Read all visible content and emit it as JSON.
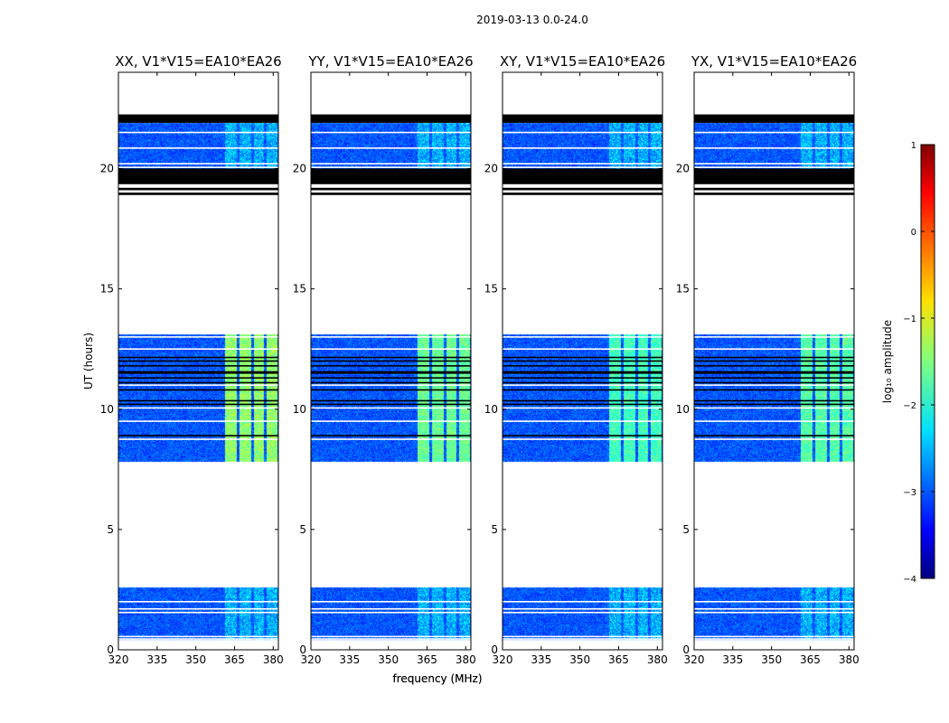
{
  "figure": {
    "suptitle": "2019-03-13 0.0-24.0"
  },
  "chart_data": [
    {
      "type": "heatmap",
      "title": "XX, V1*V15=EA10*EA26",
      "xlabel": "frequency (MHz)",
      "ylabel": "UT (hours)",
      "xlim": [
        320,
        382
      ],
      "ylim": [
        0,
        24
      ],
      "xticks": [
        320,
        335,
        350,
        365,
        380
      ],
      "yticks": [
        0,
        5,
        10,
        15,
        20
      ],
      "strong_rfi_columns_mhz": [
        [
          361.5,
          366
        ],
        [
          367,
          371.5
        ],
        [
          372.5,
          376.5
        ],
        [
          377.5,
          381.5
        ]
      ],
      "strong_rfi_peak_log10": -1.2
    },
    {
      "type": "heatmap",
      "title": "YY, V1*V15=EA10*EA26",
      "xlabel": "frequency (MHz)",
      "ylabel": "",
      "xlim": [
        320,
        382
      ],
      "ylim": [
        0,
        24
      ],
      "xticks": [
        320,
        335,
        350,
        365,
        380
      ],
      "yticks": [
        0,
        5,
        10,
        15,
        20
      ],
      "strong_rfi_columns_mhz": [
        [
          361.5,
          366
        ],
        [
          367,
          371.5
        ],
        [
          372.5,
          376.5
        ],
        [
          377.5,
          381.5
        ]
      ],
      "strong_rfi_peak_log10": -1.4
    },
    {
      "type": "heatmap",
      "title": "XY, V1*V15=EA10*EA26",
      "xlabel": "",
      "ylabel": "",
      "xlim": [
        320,
        382
      ],
      "ylim": [
        0,
        24
      ],
      "xticks": [
        320,
        335,
        350,
        365,
        380
      ],
      "yticks": [
        0,
        5,
        10,
        15,
        20
      ],
      "strong_rfi_columns_mhz": [
        [
          361.5,
          366
        ],
        [
          367,
          371.5
        ],
        [
          372.5,
          376.5
        ],
        [
          377.5,
          381.5
        ]
      ],
      "strong_rfi_peak_log10": -1.6
    },
    {
      "type": "heatmap",
      "title": "YX, V1*V15=EA10*EA26",
      "xlabel": "",
      "ylabel": "",
      "xlim": [
        320,
        382
      ],
      "ylim": [
        0,
        24
      ],
      "xticks": [
        320,
        335,
        350,
        365,
        380
      ],
      "yticks": [
        0,
        5,
        10,
        15,
        20
      ],
      "strong_rfi_columns_mhz": [
        [
          361.5,
          366
        ],
        [
          367,
          371.5
        ],
        [
          372.5,
          376.5
        ],
        [
          377.5,
          381.5
        ]
      ],
      "strong_rfi_peak_log10": -1.5
    }
  ],
  "shared": {
    "data_blocks_ut": [
      {
        "start": 0.4,
        "end": 2.6,
        "level": "low"
      },
      {
        "start": 7.8,
        "end": 13.1,
        "level": "high"
      },
      {
        "start": 20.0,
        "end": 21.9,
        "level": "low"
      }
    ],
    "flagged_black_ut": [
      [
        18.9,
        19.0
      ],
      [
        19.1,
        19.2
      ],
      [
        19.35,
        20.0
      ],
      [
        21.9,
        22.25
      ]
    ],
    "white_gap_lines_ut": [
      0.45,
      0.55,
      1.55,
      1.7,
      2.0,
      8.75,
      9.5,
      10.05,
      11.0,
      12.5,
      13.0,
      20.05,
      20.2,
      20.85,
      21.5
    ],
    "black_lines_ut": [
      8.9,
      10.2,
      10.35,
      10.8,
      11.1,
      11.3,
      11.5,
      11.55,
      11.8,
      12.0,
      12.15
    ],
    "colorbar": {
      "label": "log₁₀ amplitude",
      "vmin": -4,
      "vmax": 1,
      "ticks": [
        -4,
        -3,
        -2,
        -1,
        0,
        1
      ],
      "tick_labels": [
        "−4",
        "−3",
        "−2",
        "−1",
        "0",
        "1"
      ],
      "colormap": "jet"
    }
  },
  "colors": {
    "flagged": "#000000",
    "no_data": "#ffffff",
    "axes": "#000000"
  }
}
